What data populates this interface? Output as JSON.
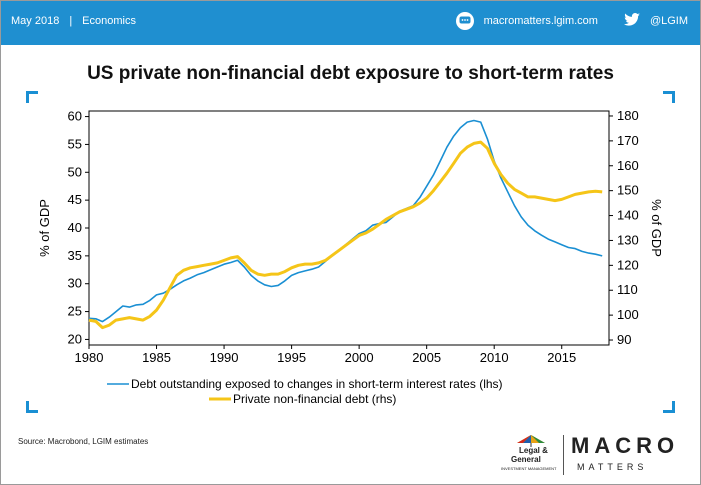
{
  "header": {
    "date": "May 2018",
    "separator": "|",
    "section": "Economics",
    "website": "macromatters.lgim.com",
    "twitter": "@LGIM"
  },
  "title": "US private non-financial debt exposure to short-term rates",
  "source": "Source: Macrobond, LGIM estimates",
  "branding": {
    "lg_line1": "Legal &",
    "lg_line2": "General",
    "lg_line3": "INVESTMENT MANAGEMENT",
    "macro": "MACRO",
    "matters": "MATTERS"
  },
  "colors": {
    "header_bg": "#1f8fd0",
    "lhs_series": "#1a8fd3",
    "rhs_series": "#f5c518",
    "accent": "#1a8fd3"
  },
  "chart_data": {
    "type": "line",
    "xlim": [
      1980,
      2018.5
    ],
    "x_ticks": [
      1980,
      1985,
      1990,
      1995,
      2000,
      2005,
      2010,
      2015
    ],
    "ylabel_left": "% of GDP",
    "ylabel_right": "% of GDP",
    "ylim_left": [
      19,
      61
    ],
    "ylim_right": [
      88,
      182
    ],
    "y_ticks_left": [
      20,
      25,
      30,
      35,
      40,
      45,
      50,
      55,
      60
    ],
    "y_ticks_right": [
      90,
      100,
      110,
      120,
      130,
      140,
      150,
      160,
      170,
      180
    ],
    "grid": false,
    "legend_position": "bottom",
    "series": [
      {
        "name": "Debt outstanding exposed to changes in short-term interest rates (lhs)",
        "axis": "left",
        "color": "#1a8fd3",
        "points": [
          [
            1980,
            23.8
          ],
          [
            1980.5,
            23.7
          ],
          [
            1981,
            23.2
          ],
          [
            1981.5,
            24.0
          ],
          [
            1982,
            25.0
          ],
          [
            1982.5,
            26.0
          ],
          [
            1983,
            25.8
          ],
          [
            1983.5,
            26.2
          ],
          [
            1984,
            26.3
          ],
          [
            1984.5,
            27.0
          ],
          [
            1985,
            28.0
          ],
          [
            1985.5,
            28.3
          ],
          [
            1986,
            29.0
          ],
          [
            1986.5,
            29.8
          ],
          [
            1987,
            30.5
          ],
          [
            1987.5,
            31.0
          ],
          [
            1988,
            31.6
          ],
          [
            1988.5,
            32.0
          ],
          [
            1989,
            32.5
          ],
          [
            1989.5,
            33.0
          ],
          [
            1990,
            33.5
          ],
          [
            1990.5,
            33.8
          ],
          [
            1991,
            34.2
          ],
          [
            1991.5,
            33.0
          ],
          [
            1992,
            31.5
          ],
          [
            1992.5,
            30.5
          ],
          [
            1993,
            29.8
          ],
          [
            1993.5,
            29.5
          ],
          [
            1994,
            29.7
          ],
          [
            1994.5,
            30.5
          ],
          [
            1995,
            31.5
          ],
          [
            1995.5,
            32.0
          ],
          [
            1996,
            32.3
          ],
          [
            1996.5,
            32.6
          ],
          [
            1997,
            33.0
          ],
          [
            1997.5,
            34.0
          ],
          [
            1998,
            35.0
          ],
          [
            1998.5,
            36.0
          ],
          [
            1999,
            37.0
          ],
          [
            1999.5,
            38.0
          ],
          [
            2000,
            39.0
          ],
          [
            2000.5,
            39.5
          ],
          [
            2001,
            40.5
          ],
          [
            2001.5,
            40.8
          ],
          [
            2002,
            41.0
          ],
          [
            2002.5,
            42.0
          ],
          [
            2003,
            43.0
          ],
          [
            2003.5,
            43.5
          ],
          [
            2004,
            44.0
          ],
          [
            2004.5,
            45.5
          ],
          [
            2005,
            47.5
          ],
          [
            2005.5,
            49.5
          ],
          [
            2006,
            52.0
          ],
          [
            2006.5,
            54.5
          ],
          [
            2007,
            56.5
          ],
          [
            2007.5,
            58.0
          ],
          [
            2008,
            59.0
          ],
          [
            2008.5,
            59.3
          ],
          [
            2009,
            59.0
          ],
          [
            2009.5,
            56.0
          ],
          [
            2010,
            52.0
          ],
          [
            2010.5,
            49.0
          ],
          [
            2011,
            46.5
          ],
          [
            2011.5,
            44.0
          ],
          [
            2012,
            42.0
          ],
          [
            2012.5,
            40.5
          ],
          [
            2013,
            39.5
          ],
          [
            2013.5,
            38.7
          ],
          [
            2014,
            38.0
          ],
          [
            2014.5,
            37.5
          ],
          [
            2015,
            37.0
          ],
          [
            2015.5,
            36.5
          ],
          [
            2016,
            36.3
          ],
          [
            2016.5,
            35.8
          ],
          [
            2017,
            35.5
          ],
          [
            2017.5,
            35.3
          ],
          [
            2018,
            35.0
          ]
        ]
      },
      {
        "name": "Private non-financial debt (rhs)",
        "axis": "right",
        "color": "#f5c518",
        "points": [
          [
            1980,
            98.0
          ],
          [
            1980.5,
            97.5
          ],
          [
            1981,
            95.0
          ],
          [
            1981.5,
            96.0
          ],
          [
            1982,
            98.0
          ],
          [
            1982.5,
            98.5
          ],
          [
            1983,
            99.0
          ],
          [
            1983.5,
            98.5
          ],
          [
            1984,
            98.0
          ],
          [
            1984.5,
            99.5
          ],
          [
            1985,
            102.0
          ],
          [
            1985.5,
            106.0
          ],
          [
            1986,
            111.0
          ],
          [
            1986.5,
            116.0
          ],
          [
            1987,
            118.0
          ],
          [
            1987.5,
            119.0
          ],
          [
            1988,
            119.5
          ],
          [
            1988.5,
            120.0
          ],
          [
            1989,
            120.5
          ],
          [
            1989.5,
            121.0
          ],
          [
            1990,
            122.0
          ],
          [
            1990.5,
            123.0
          ],
          [
            1991,
            123.5
          ],
          [
            1991.5,
            121.0
          ],
          [
            1992,
            118.0
          ],
          [
            1992.5,
            116.5
          ],
          [
            1993,
            116.0
          ],
          [
            1993.5,
            116.5
          ],
          [
            1994,
            116.5
          ],
          [
            1994.5,
            117.5
          ],
          [
            1995,
            119.0
          ],
          [
            1995.5,
            120.0
          ],
          [
            1996,
            120.5
          ],
          [
            1996.5,
            120.5
          ],
          [
            1997,
            121.0
          ],
          [
            1997.5,
            122.0
          ],
          [
            1998,
            124.0
          ],
          [
            1998.5,
            126.0
          ],
          [
            1999,
            128.0
          ],
          [
            1999.5,
            130.0
          ],
          [
            2000,
            132.0
          ],
          [
            2000.5,
            133.0
          ],
          [
            2001,
            134.5
          ],
          [
            2001.5,
            136.5
          ],
          [
            2002,
            138.5
          ],
          [
            2002.5,
            140.0
          ],
          [
            2003,
            141.5
          ],
          [
            2003.5,
            142.5
          ],
          [
            2004,
            143.5
          ],
          [
            2004.5,
            145.0
          ],
          [
            2005,
            147.0
          ],
          [
            2005.5,
            150.0
          ],
          [
            2006,
            153.5
          ],
          [
            2006.5,
            157.0
          ],
          [
            2007,
            161.0
          ],
          [
            2007.5,
            165.0
          ],
          [
            2008,
            167.5
          ],
          [
            2008.5,
            169.0
          ],
          [
            2009,
            169.5
          ],
          [
            2009.5,
            167.0
          ],
          [
            2010,
            161.0
          ],
          [
            2010.5,
            156.5
          ],
          [
            2011,
            153.0
          ],
          [
            2011.5,
            150.5
          ],
          [
            2012,
            149.0
          ],
          [
            2012.5,
            147.5
          ],
          [
            2013,
            147.5
          ],
          [
            2013.5,
            147.0
          ],
          [
            2014,
            146.5
          ],
          [
            2014.5,
            146.0
          ],
          [
            2015,
            146.5
          ],
          [
            2015.5,
            147.5
          ],
          [
            2016,
            148.5
          ],
          [
            2016.5,
            149.0
          ],
          [
            2017,
            149.5
          ],
          [
            2017.5,
            149.8
          ],
          [
            2018,
            149.5
          ]
        ]
      }
    ]
  }
}
